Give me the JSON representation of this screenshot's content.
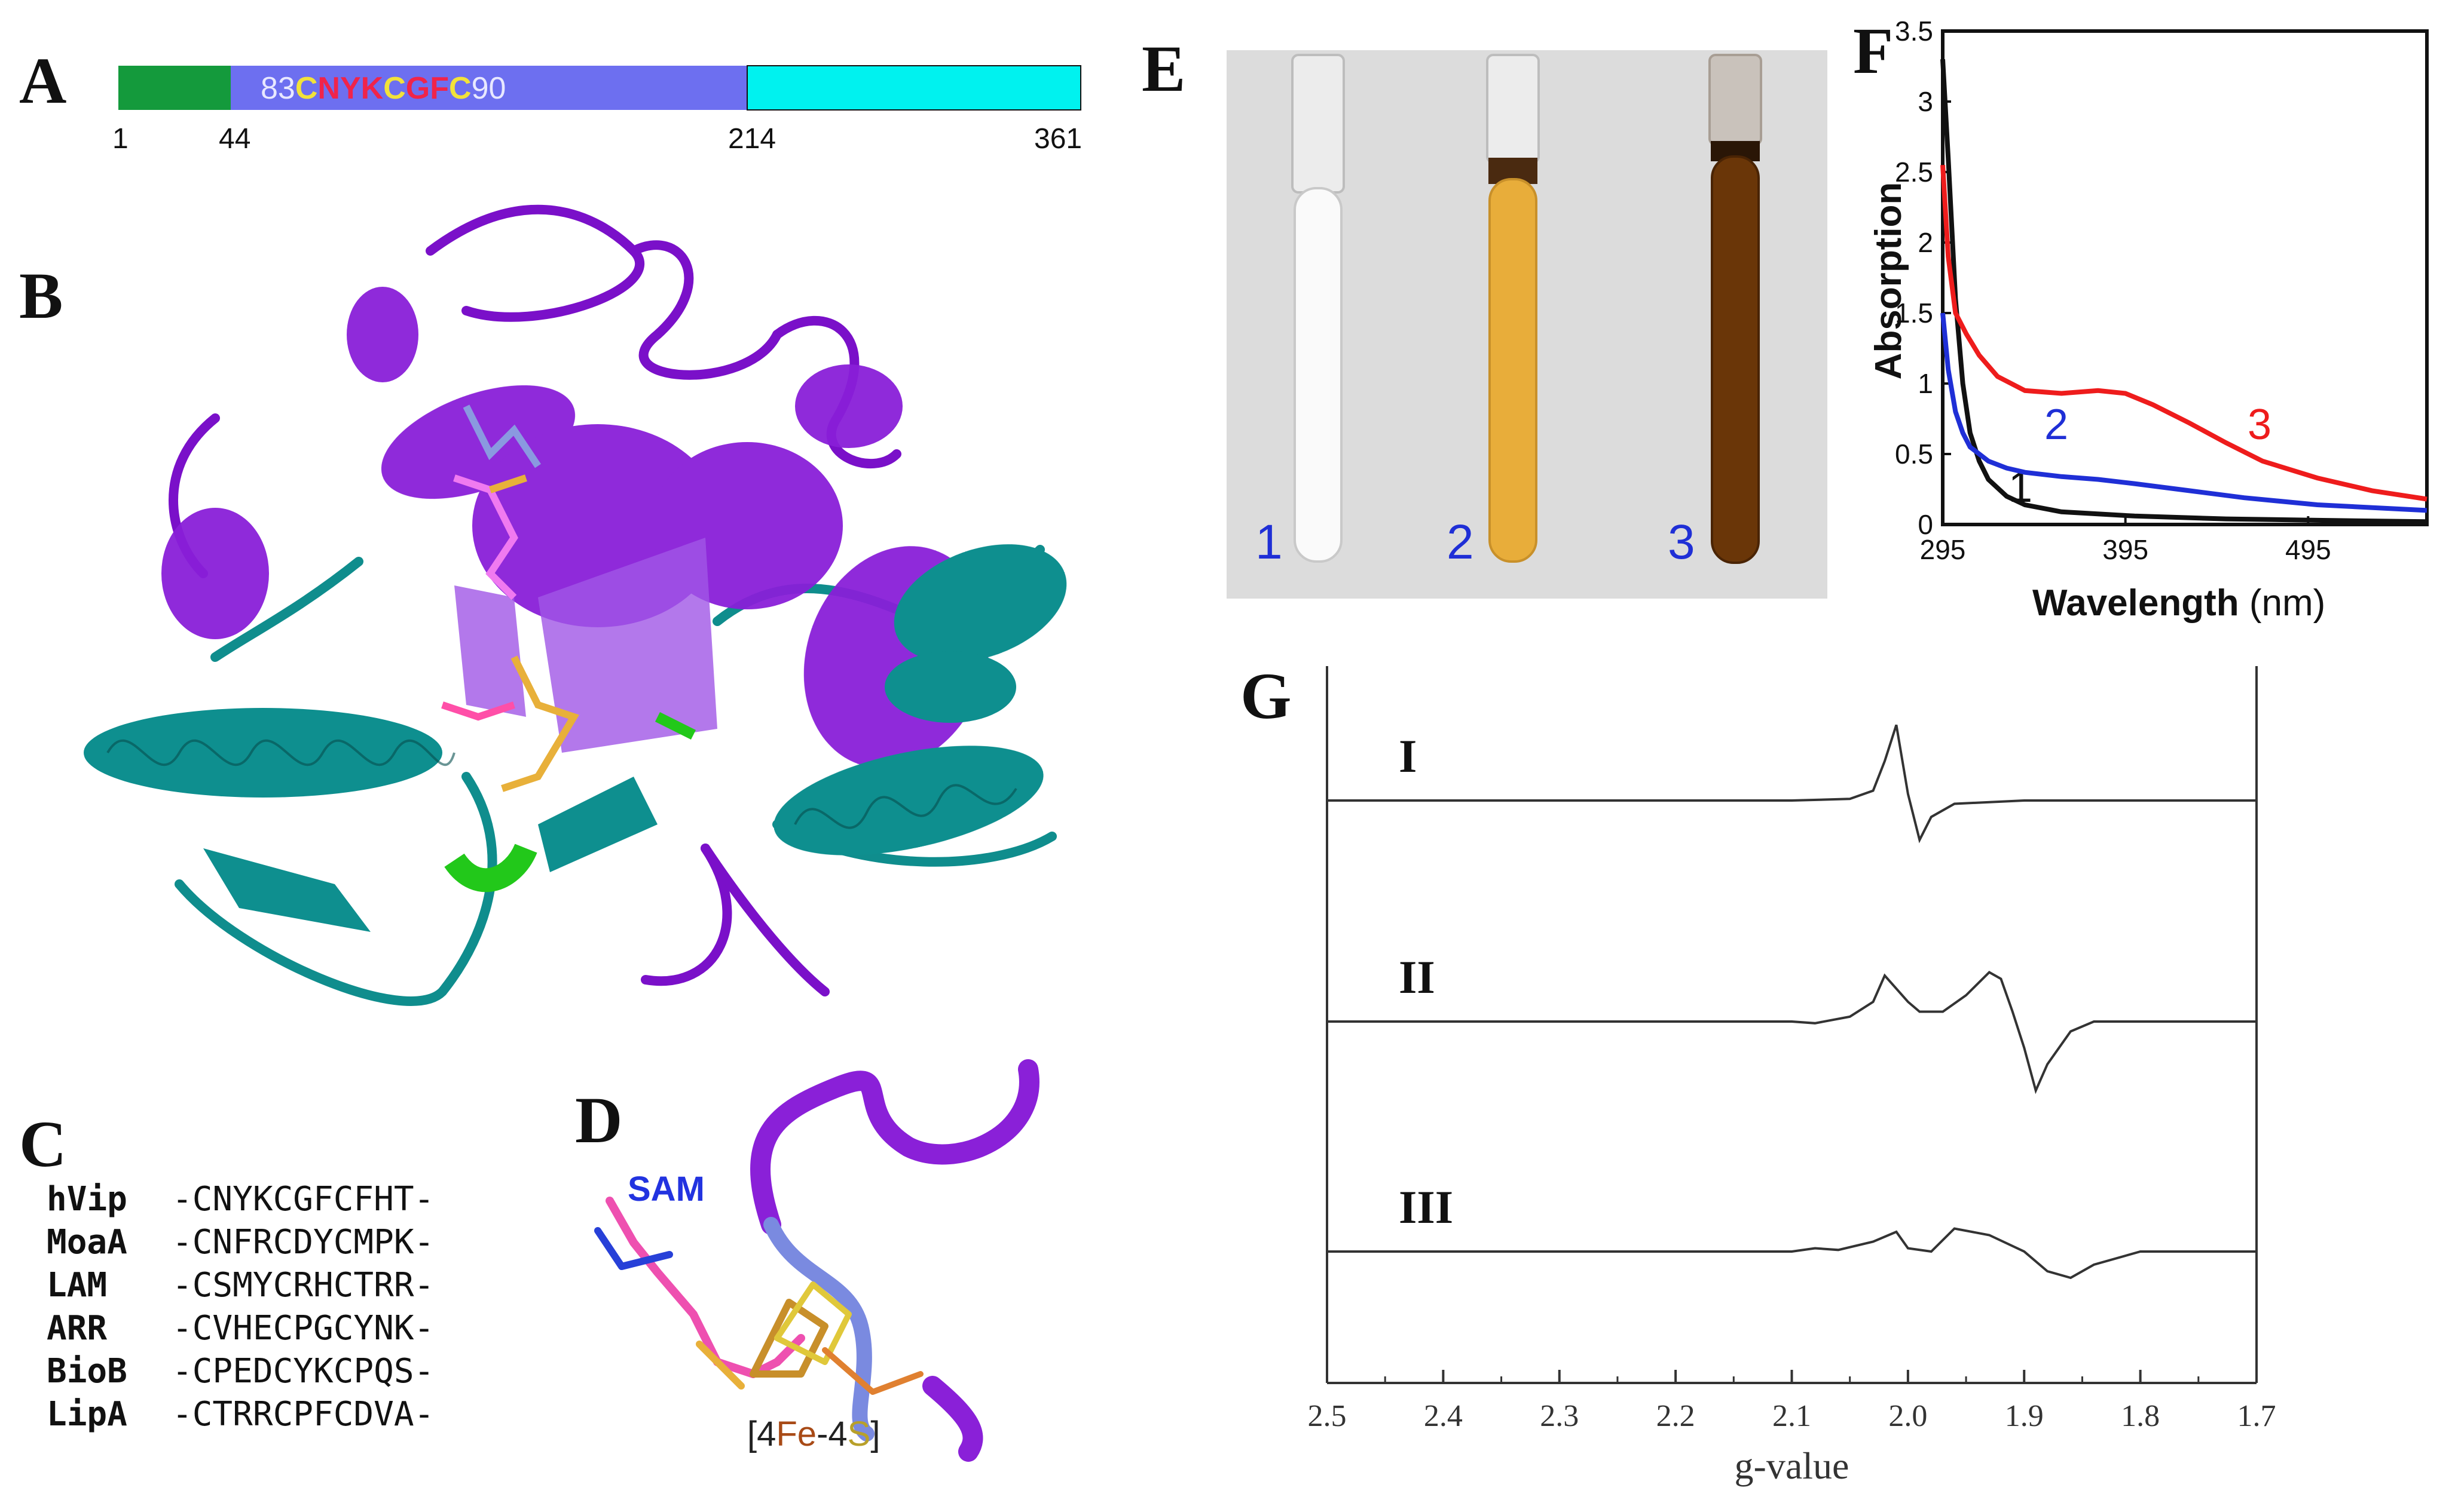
{
  "panels": {
    "A": "A",
    "B": "B",
    "C": "C",
    "D": "D",
    "E": "E",
    "F": "F",
    "G": "G"
  },
  "panel_a": {
    "motif": [
      "83",
      "C",
      "N",
      "Y",
      "K",
      "C",
      "G",
      "F",
      "C",
      "90"
    ],
    "ticks": [
      "1",
      "44",
      "214",
      "361"
    ],
    "colors": {
      "nterm": "#149a3c",
      "middle": "#6d6ff0",
      "cterm": "#00f2ef",
      "cys": "#f2e23a",
      "other": "#f0244a",
      "num": "#e8e8ff"
    }
  },
  "panel_c": {
    "rows": [
      {
        "name": "hVip",
        "seq": "-CNYKCGFCFHT-"
      },
      {
        "name": "MoaA",
        "seq": "-CNFRCDYCMPK-"
      },
      {
        "name": "LAM",
        "seq": "-CSMYCRHCTRR-"
      },
      {
        "name": "ARR",
        "seq": "-CVHECPGCYNK-"
      },
      {
        "name": "BioB",
        "seq": "-CPEDCYKCPQS-"
      },
      {
        "name": "LipA",
        "seq": "-CTRRCPFCDVA-"
      }
    ]
  },
  "panel_d": {
    "sam_label": "SAM",
    "cluster_label": [
      "[4",
      "Fe",
      "-4",
      "S",
      "]"
    ]
  },
  "panel_e": {
    "tube_labels": [
      "1",
      "2",
      "3"
    ],
    "tube_colors": [
      "#fafafa",
      "#e8ad3a",
      "#6a3608"
    ]
  },
  "panel_f": {
    "chart_data": {
      "type": "line",
      "xlabel": "Wavelength",
      "xlabel_unit": "(nm)",
      "ylabel": "Absorption",
      "xlim": [
        295,
        560
      ],
      "ylim": [
        0,
        3.5
      ],
      "x_ticks": [
        "295",
        "395",
        "495"
      ],
      "y_ticks": [
        "0",
        "0.5",
        "1",
        "1.5",
        "2",
        "2.5",
        "3",
        "3.5"
      ],
      "series": [
        {
          "name": "1",
          "color": "#111111",
          "x": [
            295,
            298,
            302,
            306,
            310,
            315,
            320,
            330,
            340,
            360,
            400,
            450,
            500,
            560
          ],
          "y": [
            3.3,
            2.6,
            1.6,
            1.0,
            0.65,
            0.45,
            0.32,
            0.2,
            0.14,
            0.09,
            0.06,
            0.04,
            0.03,
            0.02
          ]
        },
        {
          "name": "2",
          "color": "#1f2fd6",
          "x": [
            295,
            298,
            302,
            306,
            310,
            320,
            330,
            340,
            360,
            380,
            400,
            430,
            460,
            500,
            560
          ],
          "y": [
            1.5,
            1.1,
            0.8,
            0.65,
            0.55,
            0.45,
            0.4,
            0.37,
            0.34,
            0.32,
            0.29,
            0.24,
            0.19,
            0.14,
            0.1
          ]
        },
        {
          "name": "3",
          "color": "#ee1c1c",
          "x": [
            295,
            298,
            302,
            308,
            315,
            325,
            340,
            360,
            380,
            395,
            410,
            430,
            450,
            470,
            500,
            530,
            560
          ],
          "y": [
            2.55,
            1.9,
            1.5,
            1.35,
            1.2,
            1.05,
            0.95,
            0.93,
            0.95,
            0.93,
            0.85,
            0.72,
            0.58,
            0.45,
            0.33,
            0.24,
            0.18
          ]
        }
      ]
    }
  },
  "panel_g": {
    "chart_data": {
      "type": "line",
      "xlabel": "g-value",
      "x_reversed": true,
      "xlim": [
        2.5,
        1.7
      ],
      "x_ticks": [
        "2.5",
        "2.4",
        "2.3",
        "2.2",
        "2.1",
        "2.0",
        "1.9",
        "1.8",
        "1.7"
      ],
      "series": [
        {
          "name": "I",
          "x": [
            2.5,
            2.1,
            2.05,
            2.03,
            2.02,
            2.01,
            2.0,
            1.99,
            1.98,
            1.96,
            1.9,
            1.7
          ],
          "y": [
            0,
            0,
            0.05,
            0.3,
            1.2,
            2.3,
            0.2,
            -1.2,
            -0.5,
            -0.1,
            0,
            0
          ]
        },
        {
          "name": "II",
          "x": [
            2.5,
            2.1,
            2.08,
            2.05,
            2.03,
            2.02,
            2.0,
            1.99,
            1.97,
            1.95,
            1.93,
            1.92,
            1.91,
            1.9,
            1.89,
            1.88,
            1.86,
            1.84,
            1.8,
            1.7
          ],
          "y": [
            0,
            0,
            -0.05,
            0.15,
            0.6,
            1.4,
            0.6,
            0.3,
            0.3,
            0.8,
            1.5,
            1.3,
            0.3,
            -0.8,
            -2.1,
            -1.3,
            -0.3,
            0,
            0,
            0
          ]
        },
        {
          "name": "III",
          "x": [
            2.5,
            2.1,
            2.08,
            2.06,
            2.03,
            2.01,
            2.0,
            1.98,
            1.96,
            1.93,
            1.9,
            1.88,
            1.86,
            1.84,
            1.8,
            1.7
          ],
          "y": [
            0,
            0,
            0.1,
            0.05,
            0.3,
            0.6,
            0.1,
            0.0,
            0.7,
            0.5,
            0.0,
            -0.6,
            -0.8,
            -0.4,
            0,
            0
          ]
        }
      ]
    }
  }
}
